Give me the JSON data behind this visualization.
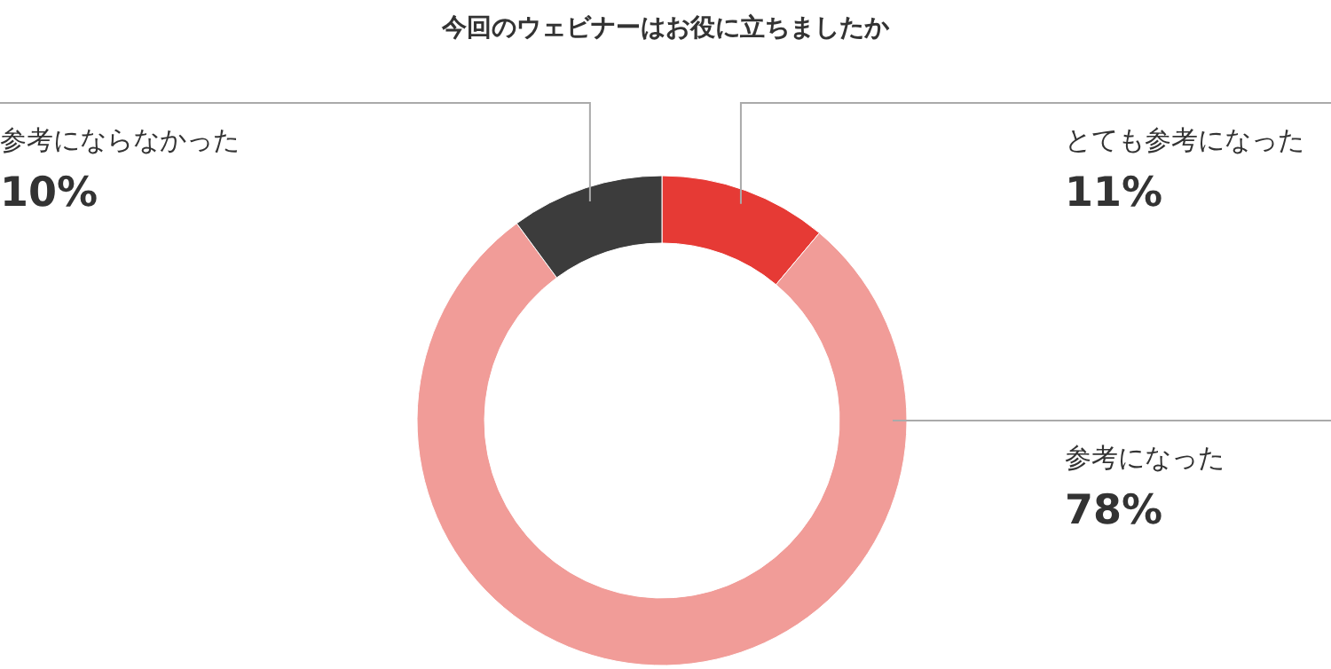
{
  "chart_data": {
    "type": "donut",
    "title": "今回のウェビナーはお役に立ちましたか",
    "categories": [
      "とても参考になった",
      "参考になった",
      "参考にならなかった"
    ],
    "values": [
      11,
      78,
      10
    ],
    "colors": [
      "#e63a35",
      "#f19c98",
      "#3c3c3c"
    ],
    "value_labels": [
      "11%",
      "78%",
      "10%"
    ]
  }
}
